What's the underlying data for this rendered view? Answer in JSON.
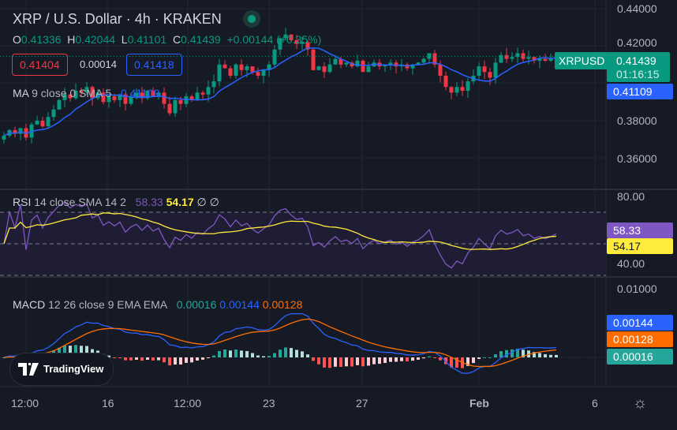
{
  "header": {
    "title": "XRP / U.S. Dollar · 4h · KRAKEN",
    "ohlc": {
      "o_label": "O",
      "o": "0.41336",
      "h_label": "H",
      "h": "0.42044",
      "l_label": "L",
      "l": "0.41101",
      "c_label": "C",
      "c": "0.41439",
      "change": "+0.00144 (+0.35%)"
    },
    "sell_price": "0.41404",
    "spread": "0.00014",
    "buy_price": "0.41418"
  },
  "ma_legend": {
    "name": "MA",
    "params": "9 close 0 SMA 5",
    "value": "0.41109"
  },
  "rsi_legend": {
    "name": "RSI",
    "params": "14 close SMA 14 2",
    "rsi": "58.33",
    "sma": "54.17",
    "extra1": "∅",
    "extra2": "∅"
  },
  "macd_legend": {
    "name": "MACD",
    "params": "12 26 close 9 EMA EMA",
    "hist": "0.00016",
    "macd": "0.00144",
    "signal": "0.00128"
  },
  "price_axis": [
    "0.44000",
    "0.42000",
    "0.38000",
    "0.36000"
  ],
  "rsi_axis": [
    "80.00",
    "40.00"
  ],
  "macd_axis": [
    "0.01000"
  ],
  "tags": {
    "symbol": "XRPUSD",
    "last": "0.41439",
    "countdown": "01:16:15",
    "ma": "0.41109",
    "rsi": "58.33",
    "rsi_sma": "54.17",
    "macd": "0.00144",
    "signal": "0.00128",
    "hist": "0.00016"
  },
  "time_axis": [
    "12:00",
    "16",
    "12:00",
    "23",
    "27",
    "Feb",
    "6"
  ],
  "logo": "TradingView",
  "colors": {
    "up": "#089981",
    "down": "#f23645",
    "ma": "#2962ff",
    "rsi": "#7e57c2",
    "rsi_sma": "#ffeb3b",
    "macd": "#2962ff",
    "signal": "#ff6d00"
  },
  "chart_data": {
    "type": "candlestick",
    "symbol": "XRPUSD",
    "interval": "4h",
    "closes": [
      0.372,
      0.375,
      0.373,
      0.376,
      0.371,
      0.378,
      0.38,
      0.377,
      0.382,
      0.386,
      0.391,
      0.394,
      0.392,
      0.396,
      0.395,
      0.398,
      0.392,
      0.395,
      0.39,
      0.393,
      0.391,
      0.394,
      0.389,
      0.393,
      0.395,
      0.392,
      0.396,
      0.393,
      0.395,
      0.389,
      0.384,
      0.391,
      0.389,
      0.393,
      0.391,
      0.395,
      0.394,
      0.398,
      0.401,
      0.41,
      0.408,
      0.404,
      0.41,
      0.407,
      0.409,
      0.406,
      0.404,
      0.407,
      0.41,
      0.418,
      0.424,
      0.426,
      0.423,
      0.421,
      0.422,
      0.418,
      0.407,
      0.409,
      0.406,
      0.41,
      0.413,
      0.41,
      0.411,
      0.409,
      0.412,
      0.406,
      0.409,
      0.411,
      0.409,
      0.41,
      0.411,
      0.409,
      0.41,
      0.408,
      0.41,
      0.411,
      0.413,
      0.416,
      0.41,
      0.404,
      0.398,
      0.395,
      0.398,
      0.396,
      0.401,
      0.404,
      0.409,
      0.406,
      0.403,
      0.411,
      0.415,
      0.413,
      0.414,
      0.416,
      0.413,
      0.414,
      0.412,
      0.413,
      0.412,
      0.413,
      0.41439
    ],
    "price_range": [
      0.35,
      0.445
    ],
    "rsi_range": [
      20,
      90
    ]
  }
}
